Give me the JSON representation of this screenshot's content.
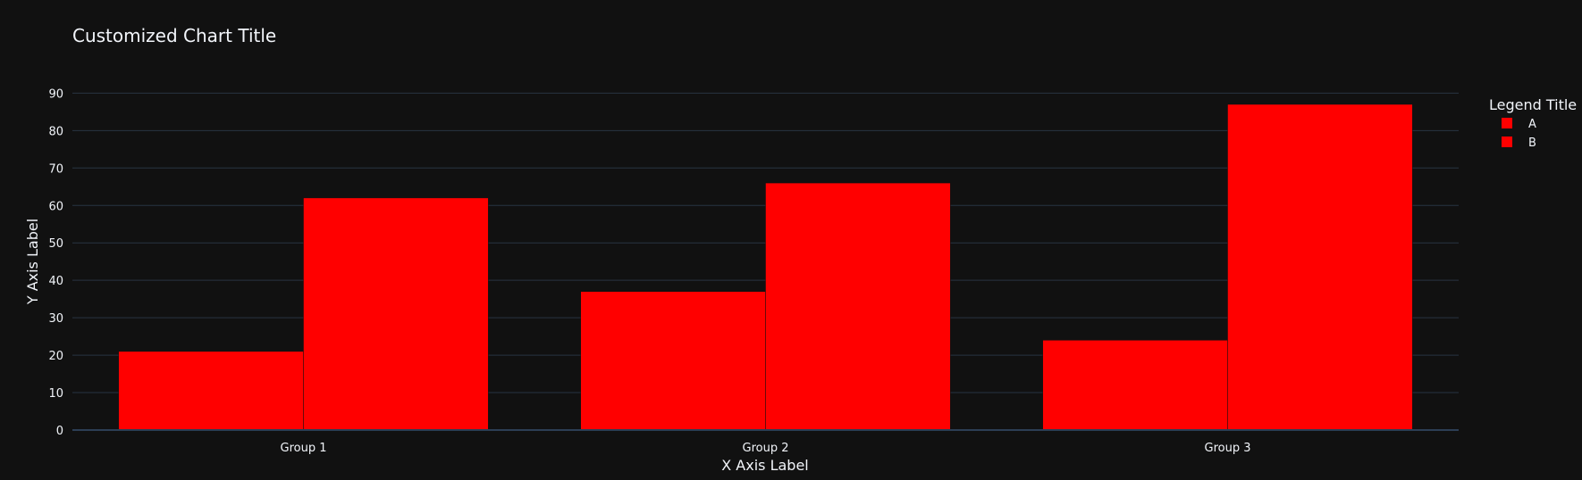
{
  "chart_data": {
    "type": "bar",
    "title": "Customized Chart Title",
    "xlabel": "X Axis Label",
    "ylabel": "Y Axis Label",
    "categories": [
      "Group 1",
      "Group 2",
      "Group 3"
    ],
    "series": [
      {
        "name": "A",
        "values": [
          21,
          37,
          24
        ],
        "color": "#ff0000"
      },
      {
        "name": "B",
        "values": [
          62,
          66,
          87
        ],
        "color": "#ff0000"
      }
    ],
    "ylim": [
      0,
      92
    ],
    "yticks": [
      0,
      10,
      20,
      30,
      40,
      50,
      60,
      70,
      80,
      90
    ],
    "legend": {
      "title": "Legend Title",
      "placement": "right"
    },
    "grid": true,
    "colors": {
      "background": "#111111",
      "grid": "#283442",
      "zeroline": "#2c3e55",
      "text": "#f2f5fa",
      "bar_outline": "#111111"
    }
  }
}
